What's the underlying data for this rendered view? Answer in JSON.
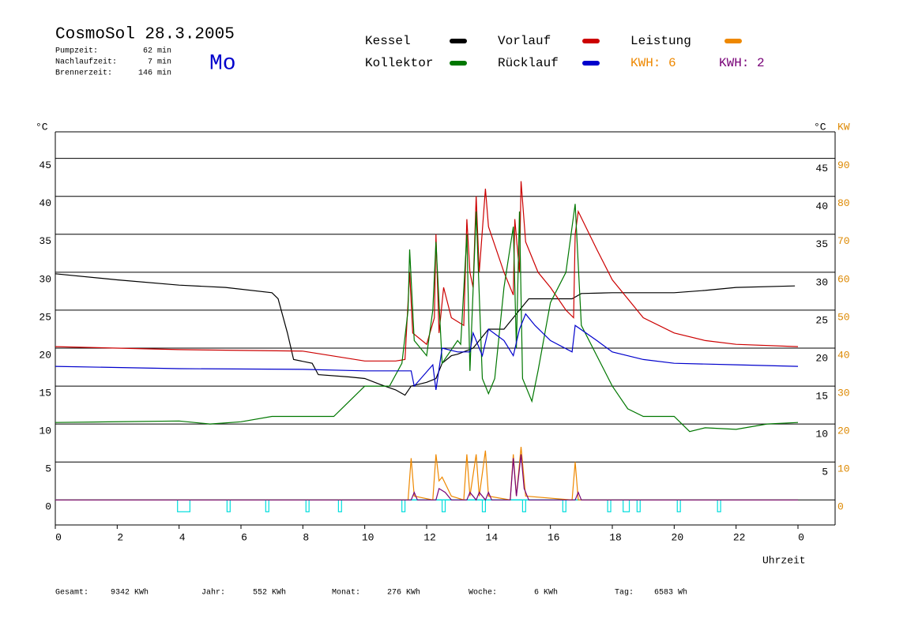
{
  "chart_data": {
    "type": "line",
    "title": "CosmoSol 28.3.2005",
    "day": "Mo",
    "info": [
      {
        "label": "Pumpzeit:",
        "value": "62 min"
      },
      {
        "label": "Nachlaufzeit:",
        "value": "7 min"
      },
      {
        "label": "Brennerzeit:",
        "value": "146 min"
      }
    ],
    "y_unit": "°C",
    "y_unit_right": "°C",
    "y2_unit": "KW",
    "x_label": "Uhrzeit",
    "xlim": [
      0,
      25.2
    ],
    "xticks": [
      0,
      2,
      4,
      6,
      8,
      10,
      12,
      14,
      16,
      18,
      20,
      22,
      {
        "value": 24,
        "label": "0"
      }
    ],
    "ylim": [
      -3.3,
      48.5
    ],
    "yticks": [
      0,
      5,
      10,
      15,
      20,
      25,
      30,
      35,
      40,
      45
    ],
    "yticks_right": [
      5,
      10,
      15,
      20,
      25,
      30,
      35,
      40,
      45
    ],
    "y2lim": [
      -6.6,
      97
    ],
    "y2ticks": [
      0,
      10,
      20,
      30,
      40,
      50,
      60,
      70,
      80,
      90
    ],
    "grid": true,
    "kwh_label": "KWH: 6",
    "series": [
      {
        "name": "Kessel",
        "color": "#000000",
        "x": [
          0,
          2,
          4,
          5.5,
          7,
          7.2,
          7.5,
          7.7,
          8.3,
          8.5,
          9.5,
          10,
          10.5,
          11,
          11.3,
          11.5,
          12,
          12.3,
          12.5,
          12.8,
          13,
          13.5,
          14,
          14.5,
          15,
          15.3,
          16,
          16.7,
          17,
          18,
          20,
          21,
          22,
          23.9
        ],
        "values": [
          29.8,
          29,
          28.3,
          28,
          27.3,
          26.5,
          22,
          18.5,
          18,
          16.5,
          16.2,
          16,
          15.2,
          14.5,
          13.8,
          15,
          15.5,
          16,
          18,
          19,
          19.2,
          20,
          22.5,
          22.5,
          25,
          26.5,
          26.5,
          26.5,
          27.2,
          27.3,
          27.3,
          27.6,
          28,
          28.2
        ]
      },
      {
        "name": "Vorlauf",
        "color": "#cc0000",
        "x": [
          0,
          4,
          8,
          10,
          11,
          11.3,
          11.45,
          11.55,
          12,
          12.25,
          12.3,
          12.4,
          12.55,
          12.8,
          13.2,
          13.3,
          13.4,
          13.5,
          13.6,
          13.7,
          13.9,
          14,
          14.5,
          14.8,
          14.85,
          15,
          15.05,
          15.2,
          15.6,
          16,
          16.5,
          16.75,
          16.8,
          16.9,
          17.5,
          18,
          19,
          20,
          21,
          22,
          24
        ],
        "values": [
          20.2,
          19.8,
          19.6,
          18.3,
          18.3,
          18.5,
          30,
          22,
          20.5,
          24,
          35,
          22,
          28,
          24,
          23,
          37,
          30,
          28,
          40,
          30,
          41,
          36,
          30,
          27,
          37,
          30,
          42,
          34,
          30,
          28,
          25,
          24,
          35,
          38,
          33,
          29,
          24,
          22,
          21,
          20.5,
          20.2
        ]
      },
      {
        "name": "Leistung",
        "color": "#ee8800",
        "axis": "y2",
        "x": [
          0,
          11.4,
          11.5,
          11.6,
          12.2,
          12.3,
          12.4,
          12.5,
          12.8,
          13.2,
          13.3,
          13.4,
          13.6,
          13.7,
          13.9,
          14,
          14.7,
          14.8,
          14.9,
          15.05,
          15.2,
          16.7,
          16.8,
          16.9,
          24
        ],
        "values": [
          0,
          0,
          11,
          1,
          0,
          12,
          5,
          6,
          1,
          0,
          12,
          1,
          12,
          1,
          13,
          1,
          0,
          12,
          1,
          14,
          1,
          0,
          10,
          0,
          0
        ]
      },
      {
        "name": "Kollektor",
        "color": "#007700",
        "x": [
          0,
          4,
          5,
          6,
          7,
          9,
          9.5,
          10,
          10.8,
          11.2,
          11.4,
          11.45,
          11.6,
          12,
          12.2,
          12.3,
          12.5,
          13,
          13.1,
          13.3,
          13.4,
          13.6,
          13.8,
          14,
          14.2,
          14.5,
          14.8,
          14.9,
          15,
          15.1,
          15.4,
          15.6,
          16,
          16.5,
          16.8,
          17,
          17.5,
          18,
          18.5,
          19,
          20,
          20.5,
          21,
          22,
          23,
          24
        ],
        "values": [
          10.2,
          10.4,
          10,
          10.3,
          11,
          11,
          13,
          15,
          15,
          18,
          25,
          33,
          21,
          19,
          25,
          34,
          18,
          21,
          20.5,
          35,
          17,
          38,
          16,
          14,
          16,
          28,
          36,
          20,
          38,
          16,
          13,
          17,
          26,
          30,
          39,
          23,
          19,
          15,
          12,
          11,
          11,
          9,
          9.5,
          9.3,
          10,
          10.2
        ]
      },
      {
        "name": "Rücklauf",
        "color": "#0000cc",
        "x": [
          0,
          4,
          8,
          10,
          11.3,
          11.5,
          11.6,
          12.2,
          12.3,
          12.5,
          13,
          13.4,
          13.5,
          13.8,
          14,
          14.5,
          14.8,
          15,
          15.2,
          15.5,
          16,
          16.7,
          16.8,
          17.5,
          18,
          19,
          20,
          22,
          24
        ],
        "values": [
          17.6,
          17.3,
          17.2,
          17,
          17,
          17,
          15,
          17.8,
          14.5,
          20,
          19.5,
          19.5,
          22,
          19,
          22.5,
          21,
          19,
          22.5,
          24.5,
          23,
          21,
          19.5,
          23,
          21,
          19.5,
          18.5,
          18,
          17.8,
          17.6
        ]
      },
      {
        "name": "KWH: 2",
        "color": "#770077",
        "axis": "y2",
        "x": [
          0,
          11.5,
          11.6,
          11.7,
          12.3,
          12.4,
          12.6,
          12.8,
          13.3,
          13.4,
          13.6,
          13.7,
          13.9,
          14.0,
          14.1,
          14.7,
          14.8,
          14.9,
          15.05,
          15.15,
          15.3,
          16.8,
          16.9,
          17.0,
          24
        ],
        "values": [
          0,
          0,
          2,
          0,
          0,
          3,
          2,
          0,
          0,
          2,
          0,
          2,
          0,
          2,
          0,
          0,
          11,
          1,
          12,
          3,
          0,
          0,
          2,
          0,
          0
        ]
      }
    ],
    "pump_intervals": [
      [
        3.95,
        4.35
      ],
      [
        5.55,
        5.65
      ],
      [
        6.8,
        6.9
      ],
      [
        8.1,
        8.2
      ],
      [
        9.15,
        9.25
      ],
      [
        11.2,
        11.3
      ],
      [
        12.5,
        12.6
      ],
      [
        13.8,
        13.9
      ],
      [
        15.1,
        15.2
      ],
      [
        16.4,
        16.5
      ],
      [
        17.85,
        17.95
      ],
      [
        18.35,
        18.55
      ],
      [
        18.8,
        18.9
      ],
      [
        20.1,
        20.2
      ],
      [
        21.4,
        21.5
      ]
    ],
    "pump_color": "#00dddd",
    "footer": [
      {
        "label": "Gesamt:",
        "value": "9342 KWh"
      },
      {
        "label": "Jahr:",
        "value": "552 KWh"
      },
      {
        "label": "Monat:",
        "value": "276 KWh"
      },
      {
        "label": "Woche:",
        "value": "6 KWh"
      },
      {
        "label": "Tag:",
        "value": "6583 Wh"
      }
    ]
  }
}
